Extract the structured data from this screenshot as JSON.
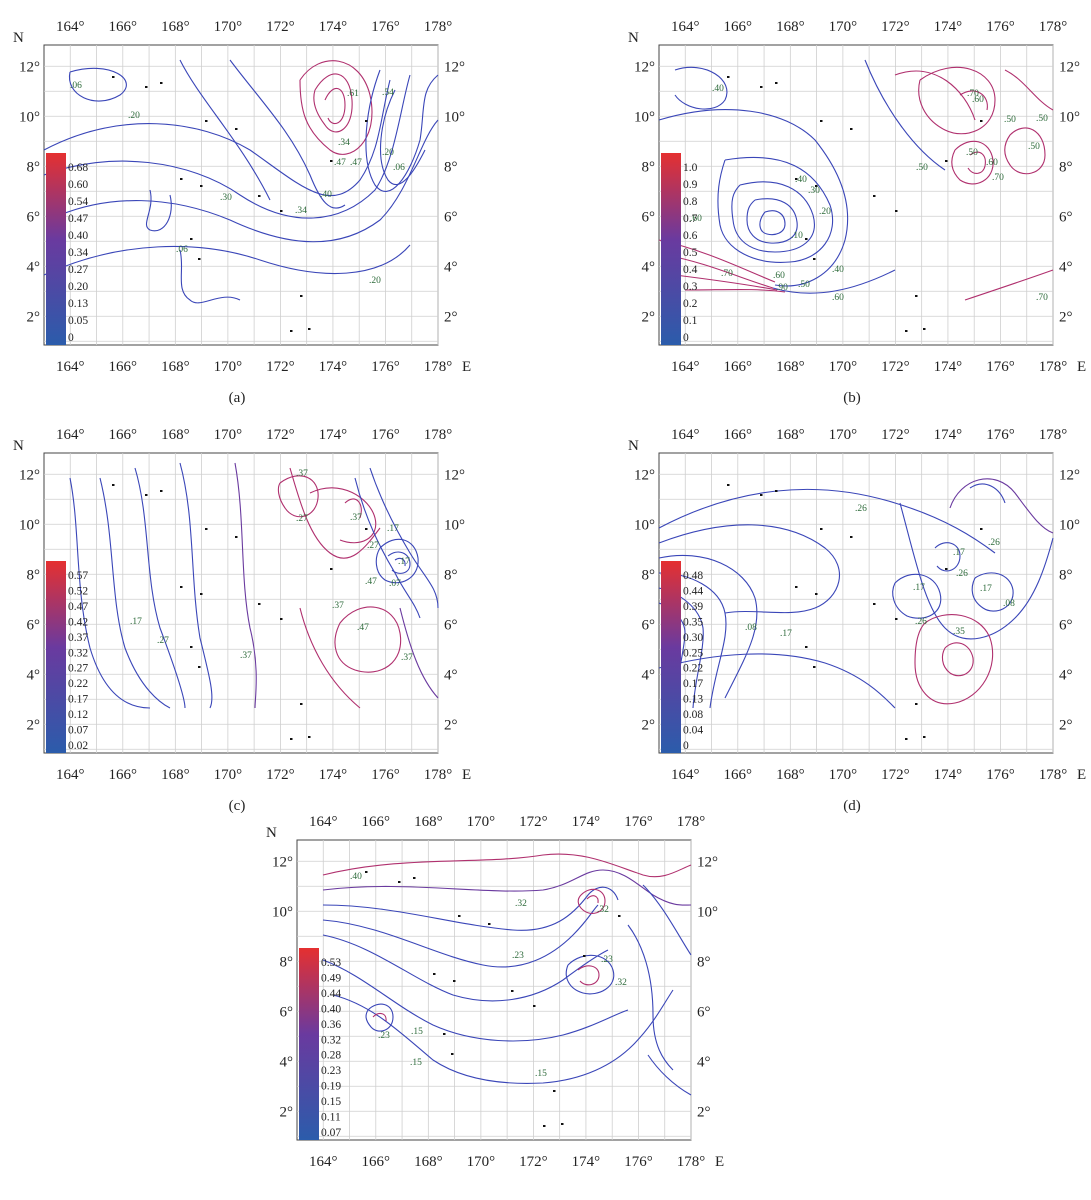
{
  "axis_labels": {
    "north": "N",
    "east": "E"
  },
  "deg": "°",
  "lon_ticks": [
    "164",
    "166",
    "168",
    "170",
    "172",
    "174",
    "176",
    "178"
  ],
  "lat_ticks": [
    "12",
    "10",
    "8",
    "6",
    "4",
    "2"
  ],
  "colors": {
    "low": "#2b5cab",
    "mid": "#6a3a9f",
    "high": "#e53030",
    "grid": "#cfcfcf",
    "contour_low": "#3a46b8",
    "contour_high": "#b0306e",
    "label": "#2e6b3b"
  },
  "panels": [
    {
      "id": "a",
      "caption": "(a)",
      "colorbar": [
        "0.68",
        "0.60",
        "0.54",
        "0.47",
        "0.40",
        "0.34",
        "0.27",
        "0.20",
        "0.13",
        "0.05",
        "0"
      ],
      "contour_labels": [
        ".06",
        ".20",
        ".61",
        ".54",
        ".34",
        ".47",
        ".47",
        ".20",
        ".06",
        ".40",
        ".30",
        ".34",
        ".06",
        ".20"
      ]
    },
    {
      "id": "b",
      "caption": "(b)",
      "colorbar": [
        "1.0",
        "0.9",
        "0.8",
        "0.7",
        "0.6",
        "0.5",
        "0.4",
        "0.3",
        "0.2",
        "0.1",
        "0"
      ],
      "contour_labels": [
        ".40",
        ".70",
        ".60",
        ".50",
        ".50",
        ".50",
        ".60",
        ".70",
        ".50",
        ".40",
        ".30",
        ".20",
        ".10",
        ".60",
        ".70",
        ".60",
        ".90",
        ".50",
        ".40",
        ".60",
        ".70",
        ".50"
      ]
    },
    {
      "id": "c",
      "caption": "(c)",
      "colorbar": [
        "0.57",
        "0.52",
        "0.47",
        "0.42",
        "0.37",
        "0.32",
        "0.27",
        "0.22",
        "0.17",
        "0.12",
        "0.07",
        "0.02"
      ],
      "contour_labels": [
        ".37",
        ".27",
        ".37",
        ".17",
        ".27",
        ".17",
        ".47",
        ".37",
        ".07",
        ".27",
        ".17",
        ".47",
        ".37",
        ".37"
      ]
    },
    {
      "id": "d",
      "caption": "(d)",
      "colorbar": [
        "0.48",
        "0.44",
        "0.39",
        "0.35",
        "0.30",
        "0.25",
        "0.22",
        "0.17",
        "0.13",
        "0.08",
        "0.04",
        "0"
      ],
      "contour_labels": [
        ".26",
        ".26",
        ".17",
        ".26",
        ".17",
        ".17",
        ".08",
        ".08",
        ".17",
        ".26",
        ".35"
      ]
    },
    {
      "id": "e",
      "caption": "",
      "colorbar": [
        "0.53",
        "0.49",
        "0.44",
        "0.40",
        "0.36",
        "0.32",
        "0.28",
        "0.23",
        "0.19",
        "0.15",
        "0.11",
        "0.07"
      ],
      "contour_labels": [
        ".40",
        ".32",
        ".23",
        ".32",
        ".23",
        ".32",
        ".15",
        ".15",
        ".23",
        ".15"
      ]
    }
  ]
}
